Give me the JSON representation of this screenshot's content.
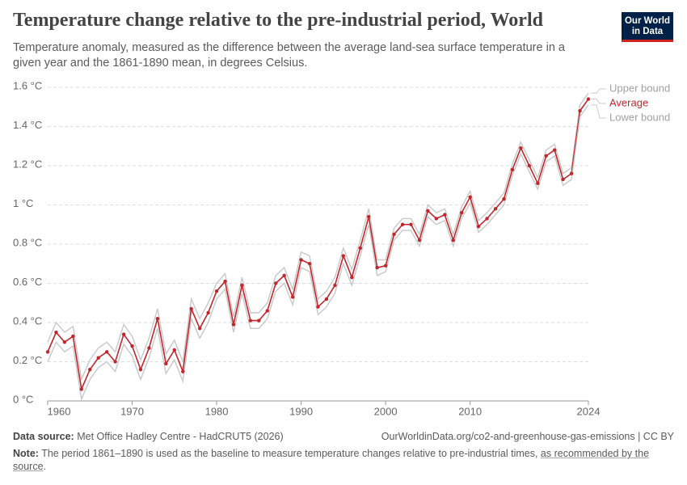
{
  "chart_data": {
    "type": "line",
    "title": "Temperature change relative to the pre-industrial period, World",
    "subtitle": "Temperature anomaly, measured as the difference between the average land-sea surface temperature in a given year and the 1861-1890 mean, in degrees Celsius.",
    "logo": [
      "Our World",
      "in Data"
    ],
    "x": [
      1960,
      1961,
      1962,
      1963,
      1964,
      1965,
      1966,
      1967,
      1968,
      1969,
      1970,
      1971,
      1972,
      1973,
      1974,
      1975,
      1976,
      1977,
      1978,
      1979,
      1980,
      1981,
      1982,
      1983,
      1984,
      1985,
      1986,
      1987,
      1988,
      1989,
      1990,
      1991,
      1992,
      1993,
      1994,
      1995,
      1996,
      1997,
      1998,
      1999,
      2000,
      2001,
      2002,
      2003,
      2004,
      2005,
      2006,
      2007,
      2008,
      2009,
      2010,
      2011,
      2012,
      2013,
      2014,
      2015,
      2016,
      2017,
      2018,
      2019,
      2020,
      2021,
      2022,
      2023,
      2024
    ],
    "xlim": [
      1960,
      2024
    ],
    "xticks": [
      1960,
      1970,
      1980,
      1990,
      2000,
      2010,
      2024
    ],
    "ylim": [
      0,
      1.6
    ],
    "yticks": [
      {
        "value": 0,
        "label": "0 °C"
      },
      {
        "value": 0.2,
        "label": "0.2 °C"
      },
      {
        "value": 0.4,
        "label": "0.4 °C"
      },
      {
        "value": 0.6,
        "label": "0.6 °C"
      },
      {
        "value": 0.8,
        "label": "0.8 °C"
      },
      {
        "value": 1,
        "label": "1 °C"
      },
      {
        "value": 1.2,
        "label": "1.2 °C"
      },
      {
        "value": 1.4,
        "label": "1.4 °C"
      },
      {
        "value": 1.6,
        "label": "1.6 °C"
      }
    ],
    "grid": true,
    "series": [
      {
        "name": "Upper bound",
        "color": "#c8c8c8",
        "label_color": "#a1a1a1",
        "markers": false,
        "values": [
          0.3,
          0.4,
          0.35,
          0.38,
          0.11,
          0.21,
          0.27,
          0.3,
          0.25,
          0.39,
          0.33,
          0.21,
          0.32,
          0.47,
          0.24,
          0.31,
          0.2,
          0.52,
          0.42,
          0.5,
          0.6,
          0.65,
          0.43,
          0.63,
          0.45,
          0.45,
          0.5,
          0.64,
          0.68,
          0.57,
          0.76,
          0.74,
          0.52,
          0.56,
          0.63,
          0.78,
          0.67,
          0.82,
          0.98,
          0.72,
          0.72,
          0.88,
          0.93,
          0.93,
          0.85,
          1.0,
          0.96,
          0.98,
          0.85,
          0.99,
          1.07,
          0.92,
          0.96,
          1.01,
          1.06,
          1.21,
          1.32,
          1.23,
          1.14,
          1.28,
          1.31,
          1.16,
          1.19,
          1.51,
          1.57
        ]
      },
      {
        "name": "Average",
        "color": "#c0272d",
        "label_color": "#c0272d",
        "markers": true,
        "values": [
          0.25,
          0.35,
          0.3,
          0.33,
          0.06,
          0.16,
          0.22,
          0.25,
          0.2,
          0.34,
          0.28,
          0.16,
          0.27,
          0.42,
          0.19,
          0.26,
          0.15,
          0.47,
          0.37,
          0.45,
          0.56,
          0.61,
          0.39,
          0.59,
          0.41,
          0.41,
          0.46,
          0.6,
          0.64,
          0.53,
          0.72,
          0.7,
          0.48,
          0.52,
          0.59,
          0.74,
          0.63,
          0.78,
          0.94,
          0.68,
          0.69,
          0.85,
          0.9,
          0.9,
          0.82,
          0.97,
          0.93,
          0.95,
          0.82,
          0.96,
          1.04,
          0.89,
          0.93,
          0.98,
          1.03,
          1.18,
          1.29,
          1.2,
          1.11,
          1.25,
          1.28,
          1.13,
          1.16,
          1.48,
          1.54
        ]
      },
      {
        "name": "Lower bound",
        "color": "#c8c8c8",
        "label_color": "#a1a1a1",
        "markers": false,
        "values": [
          0.2,
          0.3,
          0.25,
          0.28,
          0.01,
          0.11,
          0.17,
          0.2,
          0.15,
          0.29,
          0.23,
          0.11,
          0.22,
          0.37,
          0.14,
          0.21,
          0.1,
          0.42,
          0.32,
          0.4,
          0.52,
          0.57,
          0.35,
          0.55,
          0.37,
          0.37,
          0.42,
          0.56,
          0.6,
          0.49,
          0.68,
          0.66,
          0.44,
          0.48,
          0.55,
          0.7,
          0.59,
          0.74,
          0.9,
          0.64,
          0.66,
          0.82,
          0.87,
          0.87,
          0.79,
          0.94,
          0.9,
          0.92,
          0.79,
          0.93,
          1.01,
          0.86,
          0.9,
          0.95,
          1.0,
          1.15,
          1.26,
          1.17,
          1.08,
          1.22,
          1.25,
          1.1,
          1.13,
          1.45,
          1.51
        ]
      }
    ],
    "source_label": "Data source:",
    "source": "Met Office Hadley Centre - HadCRUT5 (2026)",
    "url": "OurWorldinData.org/co2-and-greenhouse-gas-emissions | CC BY",
    "note_label": "Note:",
    "note": "The period 1861–1890 is used as the baseline to measure temperature changes relative to pre-industrial times, ",
    "note_link": "as recommended by the source",
    "note_end": "."
  }
}
